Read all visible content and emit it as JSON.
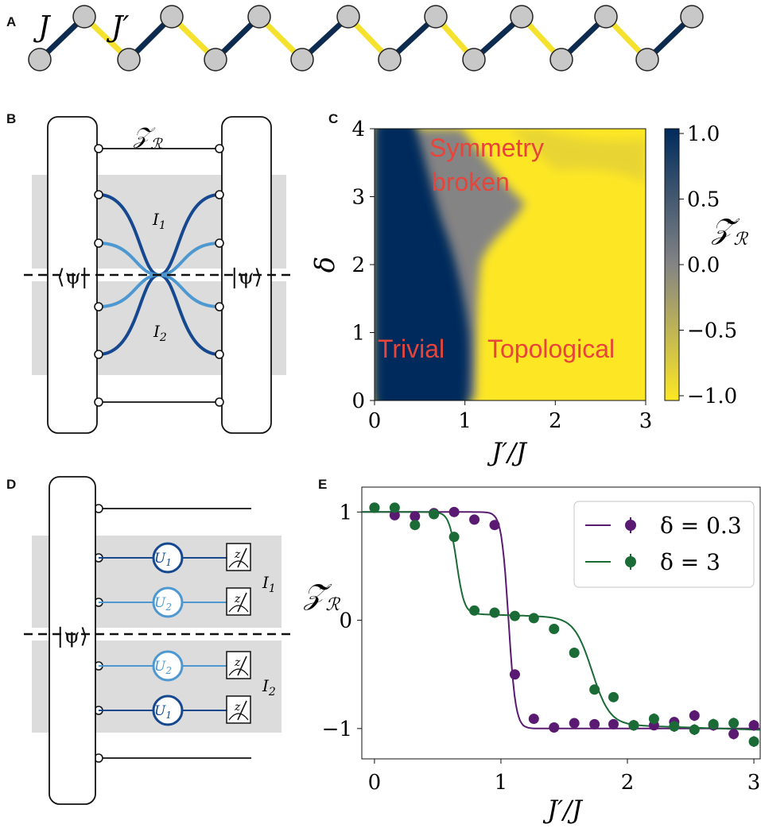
{
  "panels": {
    "a": "A",
    "b": "B",
    "c": "C",
    "d": "D",
    "e": "E"
  },
  "panel_a": {
    "j_label": "J",
    "jp_label": "J′",
    "strong_color": "#0d2a4f",
    "weak_color": "#f5e22f"
  },
  "panel_b": {
    "top_label": "𝒵",
    "top_label_sub": "ℛ",
    "bra": "⟨ψ|",
    "ket": "|ψ⟩",
    "region1": "I",
    "region1_sub": "1",
    "region2": "I",
    "region2_sub": "2",
    "dark_blue": "#15488f",
    "light_blue": "#4d98d0"
  },
  "panel_c": {
    "xlabel": "J′/J",
    "ylabel": "δ",
    "xticks": [
      "0",
      "1",
      "2",
      "3"
    ],
    "yticks": [
      "0",
      "1",
      "2",
      "3",
      "4"
    ],
    "cbar_label": "𝒵̃",
    "cbar_label_sub": "ℛ",
    "cbar_ticks": [
      "1.0",
      "0.5",
      "0.0",
      "−0.5",
      "−1.0"
    ],
    "annotations": {
      "symmetry1": "Symmetry",
      "symmetry2": "broken",
      "trivial": "Trivial",
      "topological": "Topological"
    },
    "colors": {
      "high": "#002b5c",
      "mid": "#848484",
      "low": "#fde725",
      "annot": "#e8443a"
    }
  },
  "panel_d": {
    "ket": "|ψ⟩",
    "u1": "U",
    "u1_sub": "1",
    "u2": "U",
    "u2_sub": "2",
    "meter": "z",
    "region1": "I",
    "region1_sub": "1",
    "region2": "I",
    "region2_sub": "2"
  },
  "chart_data": {
    "type": "scatter",
    "title": "",
    "xlabel": "J′/J",
    "ylabel": "𝒵̃ℛ",
    "xlim": [
      -0.1,
      3.05
    ],
    "ylim": [
      -1.28,
      1.23
    ],
    "xticks": [
      0,
      1,
      2,
      3
    ],
    "yticks": [
      -1,
      0,
      1
    ],
    "legend_position": "upper-right",
    "series": [
      {
        "name": "δ = 0.3",
        "color": "#5b1a72",
        "x": [
          0.0,
          0.16,
          0.32,
          0.47,
          0.63,
          0.79,
          0.95,
          1.11,
          1.26,
          1.42,
          1.58,
          1.74,
          1.89,
          2.05,
          2.21,
          2.37,
          2.53,
          2.68,
          2.84,
          3.0
        ],
        "y": [
          1.04,
          0.97,
          0.96,
          0.99,
          1.0,
          0.93,
          0.88,
          -0.5,
          -0.91,
          -0.99,
          -0.95,
          -0.96,
          -0.96,
          -0.97,
          -0.97,
          -0.94,
          -0.88,
          -0.97,
          -1.05,
          -0.97
        ],
        "err": [
          0.04,
          0.03,
          0.03,
          0.03,
          0.03,
          0.03,
          0.03,
          0.04,
          0.04,
          0.04,
          0.04,
          0.04,
          0.04,
          0.04,
          0.04,
          0.04,
          0.05,
          0.05,
          0.05,
          0.05
        ]
      },
      {
        "name": "δ = 3",
        "color": "#1a6b36",
        "x": [
          0.0,
          0.16,
          0.32,
          0.47,
          0.63,
          0.79,
          0.95,
          1.11,
          1.26,
          1.42,
          1.58,
          1.74,
          1.89,
          2.05,
          2.21,
          2.37,
          2.53,
          2.68,
          2.84,
          3.0
        ],
        "y": [
          1.04,
          1.04,
          0.88,
          0.98,
          0.77,
          0.09,
          0.07,
          0.04,
          0.02,
          -0.08,
          -0.3,
          -0.64,
          -0.71,
          -0.97,
          -0.91,
          -0.98,
          -1.01,
          -0.96,
          -0.95,
          -1.12
        ],
        "err": [
          0.04,
          0.04,
          0.04,
          0.04,
          0.04,
          0.04,
          0.03,
          0.03,
          0.03,
          0.03,
          0.04,
          0.04,
          0.04,
          0.05,
          0.05,
          0.05,
          0.05,
          0.05,
          0.05,
          0.05
        ]
      }
    ]
  }
}
